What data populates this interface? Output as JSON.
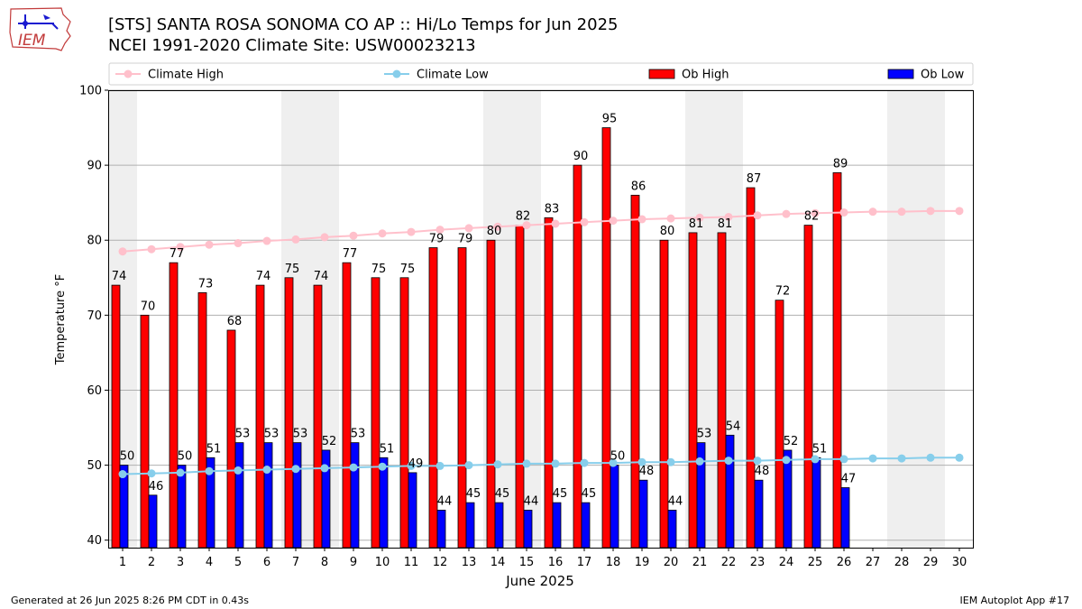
{
  "header": {
    "title_line1": "[STS] SANTA ROSA SONOMA CO AP :: Hi/Lo Temps for Jun 2025",
    "title_line2": "NCEI 1991-2020 Climate Site: USW00023213",
    "logo_text": "IEM"
  },
  "footer": {
    "generated": "Generated at 26 Jun 2025 8:26 PM CDT in 0.43s",
    "app": "IEM Autoplot App #17"
  },
  "colors": {
    "climate_high": "#ffc0cb",
    "climate_low": "#87ceeb",
    "ob_high": "#ff0000",
    "ob_low": "#0000ff",
    "weekend_band": "#efefef",
    "grid": "#b0b0b0"
  },
  "chart_data": {
    "type": "bar",
    "xlabel": "June 2025",
    "ylabel": "Temperature °F",
    "ylim": [
      39,
      100
    ],
    "yticks": [
      40,
      50,
      60,
      70,
      80,
      90,
      100
    ],
    "grid": "horizontal",
    "legend_position": "top",
    "days": [
      1,
      2,
      3,
      4,
      5,
      6,
      7,
      8,
      9,
      10,
      11,
      12,
      13,
      14,
      15,
      16,
      17,
      18,
      19,
      20,
      21,
      22,
      23,
      24,
      25,
      26,
      27,
      28,
      29,
      30
    ],
    "weekend_days": [
      1,
      7,
      8,
      14,
      15,
      21,
      22,
      28,
      29
    ],
    "series": [
      {
        "name": "Climate High",
        "kind": "line",
        "values": [
          78.5,
          78.8,
          79.1,
          79.4,
          79.6,
          79.9,
          80.1,
          80.4,
          80.6,
          80.9,
          81.1,
          81.4,
          81.6,
          81.8,
          82.0,
          82.2,
          82.4,
          82.6,
          82.8,
          82.9,
          83.0,
          83.1,
          83.3,
          83.5,
          83.6,
          83.7,
          83.8,
          83.8,
          83.9,
          83.9
        ]
      },
      {
        "name": "Climate Low",
        "kind": "line",
        "values": [
          48.8,
          48.9,
          49.0,
          49.2,
          49.3,
          49.4,
          49.5,
          49.6,
          49.7,
          49.8,
          49.9,
          49.9,
          50.0,
          50.1,
          50.2,
          50.2,
          50.3,
          50.3,
          50.4,
          50.4,
          50.5,
          50.6,
          50.6,
          50.7,
          50.8,
          50.8,
          50.9,
          50.9,
          51.0,
          51.0
        ]
      },
      {
        "name": "Ob High",
        "kind": "bar",
        "values": [
          74,
          70,
          77,
          73,
          68,
          74,
          75,
          74,
          77,
          75,
          75,
          79,
          79,
          80,
          82,
          83,
          90,
          95,
          86,
          80,
          81,
          81,
          87,
          72,
          82,
          89
        ]
      },
      {
        "name": "Ob Low",
        "kind": "bar",
        "values": [
          50,
          46,
          50,
          51,
          53,
          53,
          53,
          52,
          53,
          51,
          49,
          44,
          45,
          45,
          44,
          45,
          45,
          50,
          48,
          44,
          53,
          54,
          48,
          52,
          51,
          47
        ]
      }
    ]
  }
}
